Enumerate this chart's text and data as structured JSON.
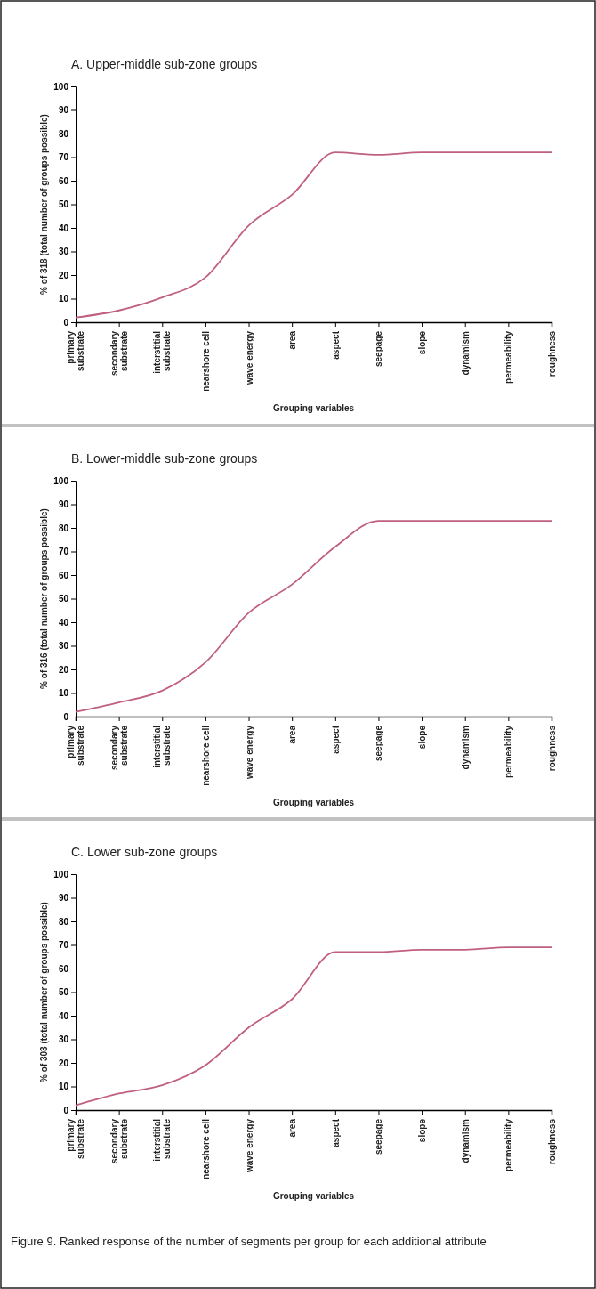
{
  "chart_data": [
    {
      "type": "line",
      "title": "A. Upper-middle sub-zone groups",
      "xlabel": "Grouping variables",
      "ylabel": "% of 318 (total number of groups possible)",
      "categories": [
        "primary substrate",
        "secondary substrate",
        "interstitial substrate",
        "nearshore cell",
        "wave energy",
        "area",
        "aspect",
        "seepage",
        "slope",
        "dynamism",
        "permeability",
        "roughness"
      ],
      "series": [
        {
          "color": "#c0607e",
          "values": [
            2,
            5,
            10.5,
            19,
            41,
            54,
            72,
            71,
            72,
            72,
            72,
            72
          ]
        }
      ],
      "ylim": [
        0,
        100
      ],
      "yticks": [
        0,
        10,
        20,
        30,
        40,
        50,
        60,
        70,
        80,
        90,
        100
      ]
    },
    {
      "type": "line",
      "title": "B.  Lower-middle sub-zone groups",
      "xlabel": "Grouping variables",
      "ylabel": "% of 316 (total number of groups possible)",
      "categories": [
        "primary substrate",
        "secondary substrate",
        "interstitial substrate",
        "nearshore cell",
        "wave energy",
        "area",
        "aspect",
        "seepage",
        "slope",
        "dynamism",
        "permeability",
        "roughness"
      ],
      "series": [
        {
          "color": "#c0607e",
          "values": [
            2,
            6,
            11,
            23,
            44,
            56,
            72,
            83,
            83,
            83,
            83,
            83
          ]
        }
      ],
      "ylim": [
        0,
        100
      ],
      "yticks": [
        0,
        10,
        20,
        30,
        40,
        50,
        60,
        70,
        80,
        90,
        100
      ]
    },
    {
      "type": "line",
      "title": "C. Lower sub-zone groups",
      "xlabel": "Grouping variables",
      "ylabel": "% of 303 (total number of groups possible)",
      "categories": [
        "primary substrate",
        "secondary substrate",
        "interstitial substrate",
        "nearshore cell",
        "wave energy",
        "area",
        "aspect",
        "seepage",
        "slope",
        "dynamism",
        "permeability",
        "roughness"
      ],
      "series": [
        {
          "color": "#c0607e",
          "values": [
            2,
            7,
            10.5,
            19,
            35,
            47,
            67,
            67,
            68,
            68,
            69,
            69
          ]
        }
      ],
      "ylim": [
        0,
        100
      ],
      "yticks": [
        0,
        10,
        20,
        30,
        40,
        50,
        60,
        70,
        80,
        90,
        100
      ],
      "annotations": [
        "Figure 9. Ranked response of the number of segments per group for each additional attribute"
      ]
    }
  ]
}
